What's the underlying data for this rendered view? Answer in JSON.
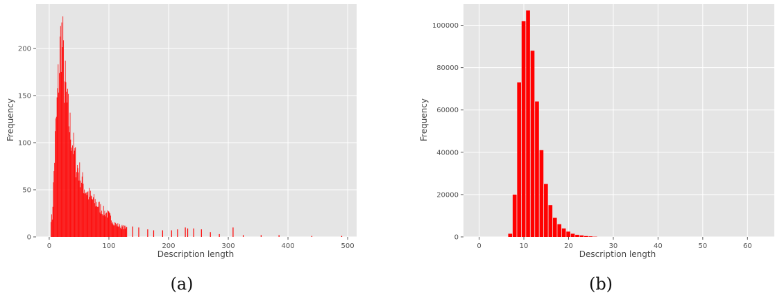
{
  "chart_data": [
    {
      "type": "bar",
      "caption": "(a)",
      "xlabel": "Description length",
      "ylabel": "Frequency",
      "xlim": [
        -22,
        515
      ],
      "ylim": [
        0,
        247
      ],
      "xticks": [
        0,
        100,
        200,
        300,
        400,
        500
      ],
      "yticks": [
        0,
        50,
        100,
        150,
        200
      ],
      "grid": true,
      "bar_color": "#ff0000",
      "background": "#e5e5e5",
      "peaks": [
        {
          "x": 5,
          "y": 22
        },
        {
          "x": 10,
          "y": 110
        },
        {
          "x": 15,
          "y": 175
        },
        {
          "x": 17,
          "y": 200
        },
        {
          "x": 20,
          "y": 236
        },
        {
          "x": 23,
          "y": 215
        },
        {
          "x": 25,
          "y": 185
        },
        {
          "x": 28,
          "y": 165
        },
        {
          "x": 30,
          "y": 150
        },
        {
          "x": 35,
          "y": 125
        },
        {
          "x": 40,
          "y": 105
        },
        {
          "x": 45,
          "y": 85
        },
        {
          "x": 50,
          "y": 75
        },
        {
          "x": 55,
          "y": 65
        },
        {
          "x": 60,
          "y": 55
        },
        {
          "x": 70,
          "y": 45
        },
        {
          "x": 80,
          "y": 38
        },
        {
          "x": 90,
          "y": 30
        },
        {
          "x": 100,
          "y": 25
        },
        {
          "x": 110,
          "y": 15
        },
        {
          "x": 120,
          "y": 12
        },
        {
          "x": 140,
          "y": 9
        },
        {
          "x": 160,
          "y": 7
        },
        {
          "x": 180,
          "y": 5
        },
        {
          "x": 200,
          "y": 4
        },
        {
          "x": 240,
          "y": 3
        },
        {
          "x": 280,
          "y": 1
        },
        {
          "x": 310,
          "y": 1
        },
        {
          "x": 400,
          "y": 0
        },
        {
          "x": 490,
          "y": 0
        }
      ],
      "spikes": [
        {
          "x": 140,
          "y": 11
        },
        {
          "x": 150,
          "y": 10
        },
        {
          "x": 165,
          "y": 8
        },
        {
          "x": 175,
          "y": 7
        },
        {
          "x": 190,
          "y": 7
        },
        {
          "x": 205,
          "y": 7
        },
        {
          "x": 215,
          "y": 8
        },
        {
          "x": 228,
          "y": 10
        },
        {
          "x": 232,
          "y": 9
        },
        {
          "x": 242,
          "y": 9
        },
        {
          "x": 255,
          "y": 8
        },
        {
          "x": 270,
          "y": 5
        },
        {
          "x": 285,
          "y": 3
        },
        {
          "x": 308,
          "y": 10
        },
        {
          "x": 325,
          "y": 2
        },
        {
          "x": 355,
          "y": 2
        },
        {
          "x": 385,
          "y": 2
        },
        {
          "x": 440,
          "y": 1
        },
        {
          "x": 490,
          "y": 1
        }
      ]
    },
    {
      "type": "bar",
      "caption": "(b)",
      "xlabel": "Description length",
      "ylabel": "Frequency",
      "xlim": [
        -3.5,
        66
      ],
      "ylim": [
        0,
        110000
      ],
      "xticks": [
        0,
        10,
        20,
        30,
        40,
        50,
        60
      ],
      "yticks": [
        0,
        20000,
        40000,
        60000,
        80000,
        100000
      ],
      "grid": true,
      "bar_color": "#ff0000",
      "background": "#e5e5e5",
      "bar_width": 1,
      "x": [
        7,
        8,
        9,
        10,
        11,
        12,
        13,
        14,
        15,
        16,
        17,
        18,
        19,
        20,
        21,
        22,
        23,
        24,
        25,
        26
      ],
      "values": [
        1500,
        20000,
        73000,
        102000,
        107000,
        88000,
        64000,
        41000,
        25000,
        15000,
        9000,
        6000,
        4000,
        2500,
        1500,
        1000,
        700,
        400,
        250,
        100
      ]
    }
  ]
}
